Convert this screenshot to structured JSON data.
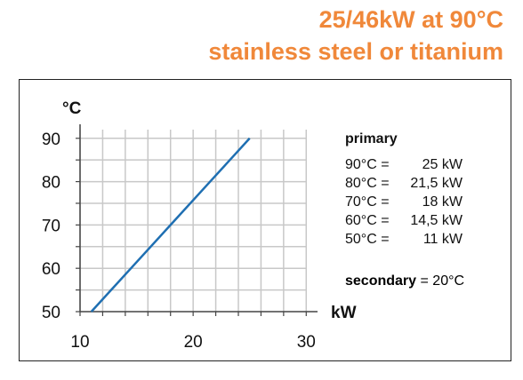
{
  "header": {
    "line1": "25/46kW at 90°C",
    "line2": "stainless steel or titanium"
  },
  "chart_data": {
    "type": "line",
    "title": "",
    "xlabel": "kW",
    "ylabel": "°C",
    "xlim": [
      10,
      31
    ],
    "ylim": [
      50,
      92
    ],
    "xticks": [
      10,
      20,
      30
    ],
    "yticks": [
      50,
      60,
      70,
      80,
      90
    ],
    "grid": true,
    "series": [
      {
        "x": [
          11,
          14.5,
          18,
          21.5,
          25
        ],
        "y": [
          50,
          60,
          70,
          80,
          90
        ]
      }
    ],
    "color": "#1f6fb2"
  },
  "legend": {
    "primary_label": "primary",
    "rows": [
      {
        "temp": "90°C =",
        "power": "25 kW"
      },
      {
        "temp": "80°C =",
        "power": "21,5 kW"
      },
      {
        "temp": "70°C =",
        "power": "18 kW"
      },
      {
        "temp": "60°C =",
        "power": "14,5 kW"
      },
      {
        "temp": "50°C =",
        "power": "11 kW"
      }
    ],
    "secondary_label": "secondary",
    "secondary_value": "= 20°C"
  }
}
